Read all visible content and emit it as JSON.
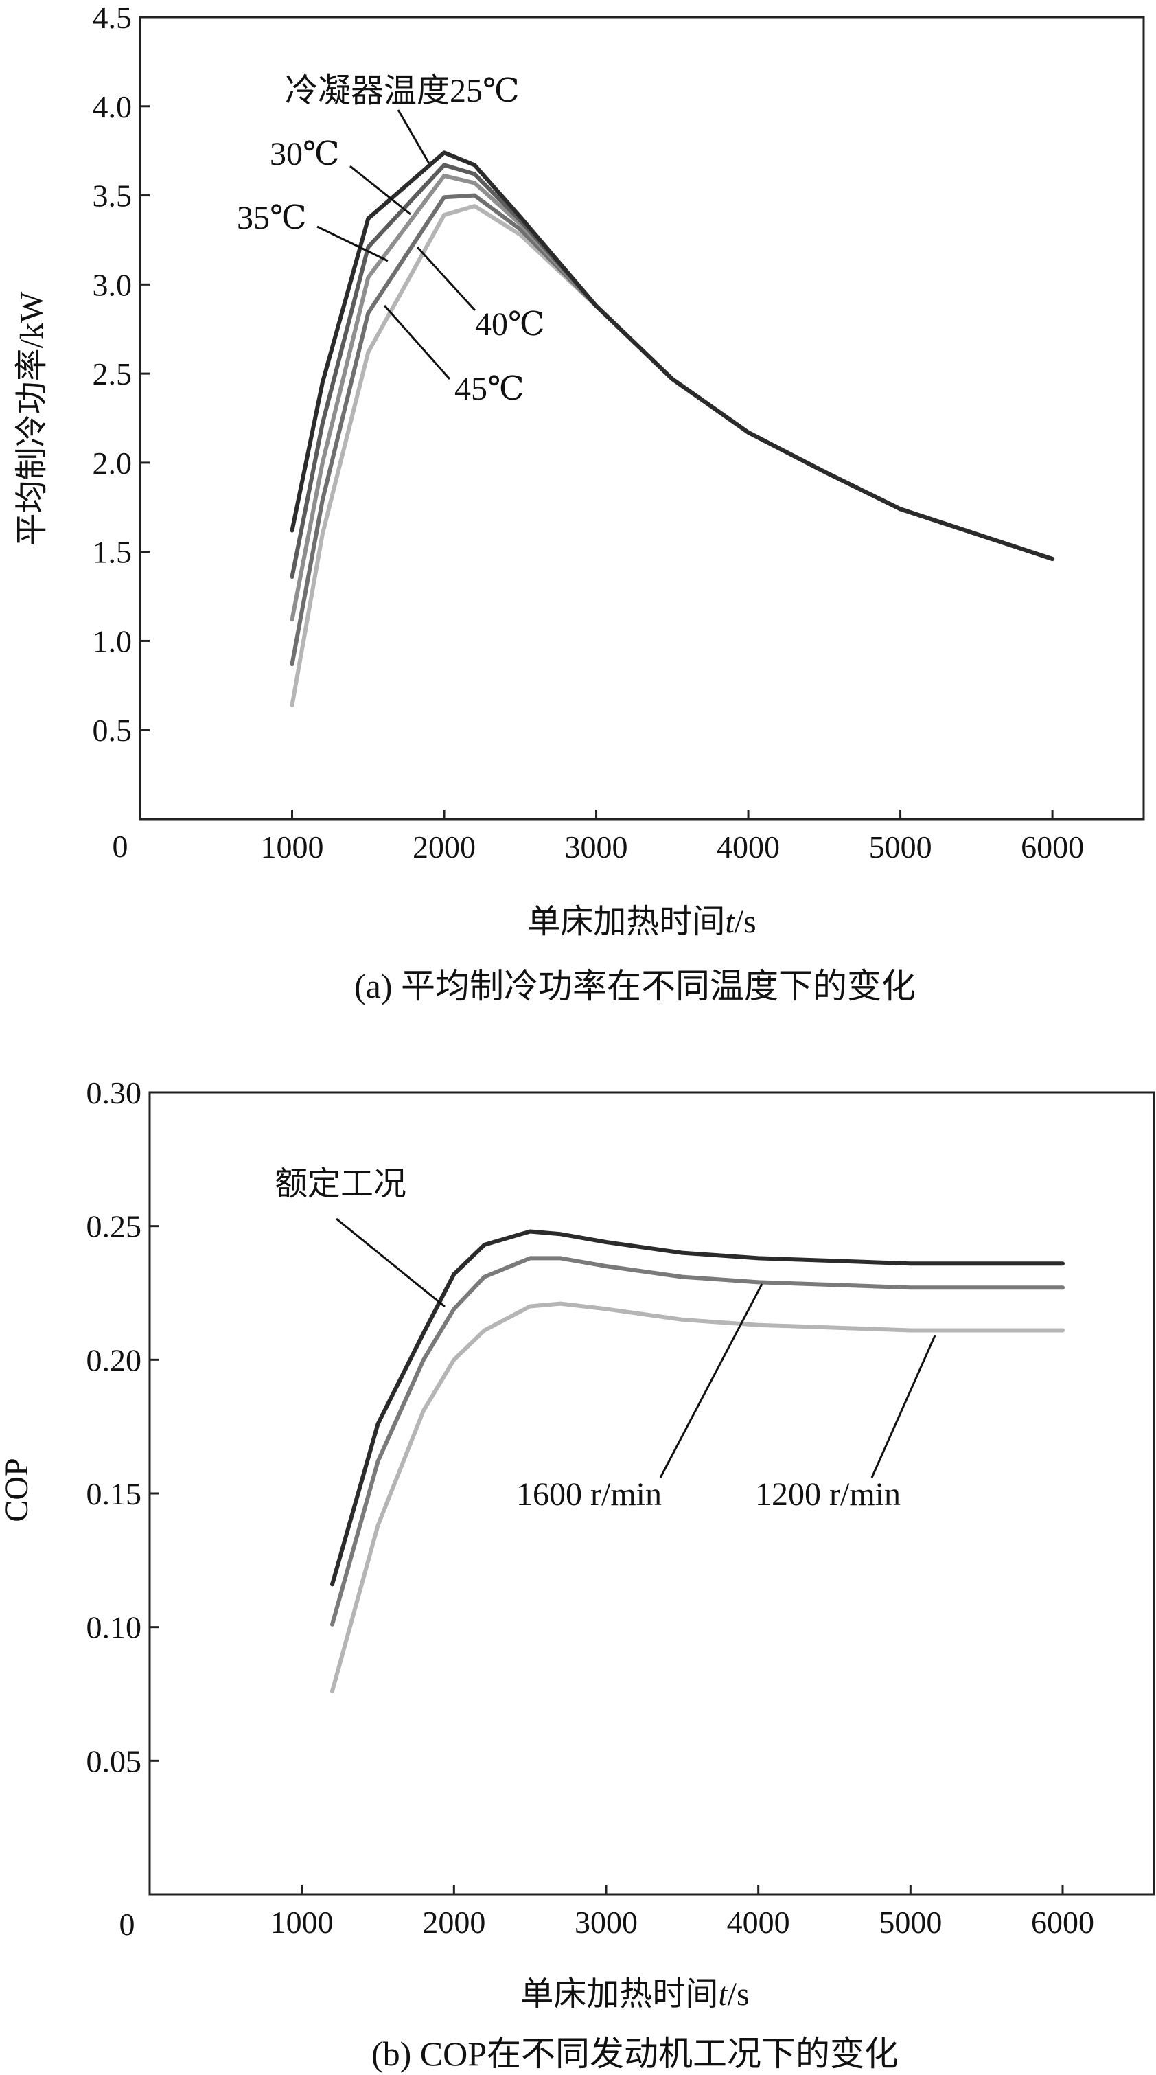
{
  "chart_data": [
    {
      "type": "line",
      "id": "a",
      "caption": "(a) 平均制冷功率在不同温度下的变化",
      "xlabel": "单床加热时间",
      "xlabel_var": "t",
      "xlabel_unit": "/s",
      "ylabel": "平均制冷功率/kW",
      "xlim": [
        0,
        6600
      ],
      "ylim": [
        0,
        4.5
      ],
      "origin_label": "0",
      "xticks": [
        1000,
        2000,
        3000,
        4000,
        5000,
        6000
      ],
      "xtick_labels": [
        "1000",
        "2000",
        "3000",
        "4000",
        "5000",
        "6000"
      ],
      "yticks": [
        0.5,
        1.0,
        1.5,
        2.0,
        2.5,
        3.0,
        3.5,
        4.0,
        4.5
      ],
      "ytick_labels": [
        "0.5",
        "1.0",
        "1.5",
        "2.0",
        "2.5",
        "3.0",
        "3.5",
        "4.0",
        "4.5"
      ],
      "series": [
        {
          "name": "冷凝器温度25℃",
          "color": "#2b2b2b",
          "x": [
            1000,
            1200,
            1500,
            2000,
            2200,
            2500,
            3000,
            3500,
            4000,
            4500,
            5000,
            6000
          ],
          "y": [
            1.62,
            2.45,
            3.37,
            3.74,
            3.67,
            3.38,
            2.88,
            2.47,
            2.17,
            1.95,
            1.74,
            1.46
          ]
        },
        {
          "name": "30℃",
          "color": "#5c5c5c",
          "x": [
            1000,
            1200,
            1500,
            2000,
            2200,
            2500,
            3000,
            3500,
            4000,
            4500,
            5000,
            6000
          ],
          "y": [
            1.36,
            2.22,
            3.21,
            3.67,
            3.62,
            3.36,
            2.88,
            2.47,
            2.17,
            1.95,
            1.74,
            1.46
          ]
        },
        {
          "name": "35℃",
          "color": "#8f8f8f",
          "x": [
            1000,
            1200,
            1500,
            2000,
            2200,
            2500,
            3000,
            3500,
            4000,
            4500,
            5000,
            6000
          ],
          "y": [
            1.12,
            2.0,
            3.04,
            3.61,
            3.57,
            3.34,
            2.88,
            2.47,
            2.17,
            1.95,
            1.74,
            1.46
          ]
        },
        {
          "name": "40℃",
          "color": "#6f6f6f",
          "x": [
            1000,
            1200,
            1500,
            2000,
            2200,
            2500,
            3000,
            3500,
            4000,
            4500,
            5000,
            6000
          ],
          "y": [
            0.87,
            1.79,
            2.84,
            3.49,
            3.5,
            3.31,
            2.88,
            2.47,
            2.17,
            1.95,
            1.74,
            1.46
          ]
        },
        {
          "name": "45℃",
          "color": "#b5b5b5",
          "x": [
            1000,
            1200,
            1500,
            2000,
            2200,
            2500,
            3000,
            3500,
            4000,
            4500,
            5000,
            6000
          ],
          "y": [
            0.64,
            1.6,
            2.62,
            3.39,
            3.44,
            3.28,
            2.88,
            2.47,
            2.17,
            1.95,
            1.74,
            1.46
          ]
        }
      ]
    },
    {
      "type": "line",
      "id": "b",
      "caption": "(b) COP在不同发动机工况下的变化",
      "xlabel": "单床加热时间",
      "xlabel_var": "t",
      "xlabel_unit": "/s",
      "ylabel": "COP",
      "xlim": [
        0,
        6600
      ],
      "ylim": [
        0,
        0.3
      ],
      "origin_label": "0",
      "xticks": [
        1000,
        2000,
        3000,
        4000,
        5000,
        6000
      ],
      "xtick_labels": [
        "1000",
        "2000",
        "3000",
        "4000",
        "5000",
        "6000"
      ],
      "yticks": [
        0.05,
        0.1,
        0.15,
        0.2,
        0.25,
        0.3
      ],
      "ytick_labels": [
        "0.05",
        "0.10",
        "0.15",
        "0.20",
        "0.25",
        "0.30"
      ],
      "series": [
        {
          "name": "额定工况",
          "color": "#2b2b2b",
          "x": [
            1200,
            1500,
            1800,
            2000,
            2200,
            2500,
            2700,
            3000,
            3500,
            4000,
            4500,
            5000,
            6000
          ],
          "y": [
            0.116,
            0.176,
            0.21,
            0.232,
            0.243,
            0.248,
            0.247,
            0.244,
            0.24,
            0.238,
            0.237,
            0.236,
            0.236
          ]
        },
        {
          "name": "1600 r/min",
          "color": "#7a7a7a",
          "x": [
            1200,
            1500,
            1800,
            2000,
            2200,
            2500,
            2700,
            3000,
            3500,
            4000,
            4500,
            5000,
            6000
          ],
          "y": [
            0.101,
            0.162,
            0.2,
            0.219,
            0.231,
            0.238,
            0.238,
            0.235,
            0.231,
            0.229,
            0.228,
            0.227,
            0.227
          ]
        },
        {
          "name": "1200 r/min",
          "color": "#b5b5b5",
          "x": [
            1200,
            1500,
            1800,
            2000,
            2200,
            2500,
            2700,
            3000,
            3500,
            4000,
            4500,
            5000,
            6000
          ],
          "y": [
            0.076,
            0.138,
            0.181,
            0.2,
            0.211,
            0.22,
            0.221,
            0.219,
            0.215,
            0.213,
            0.212,
            0.211,
            0.211
          ]
        }
      ]
    }
  ]
}
